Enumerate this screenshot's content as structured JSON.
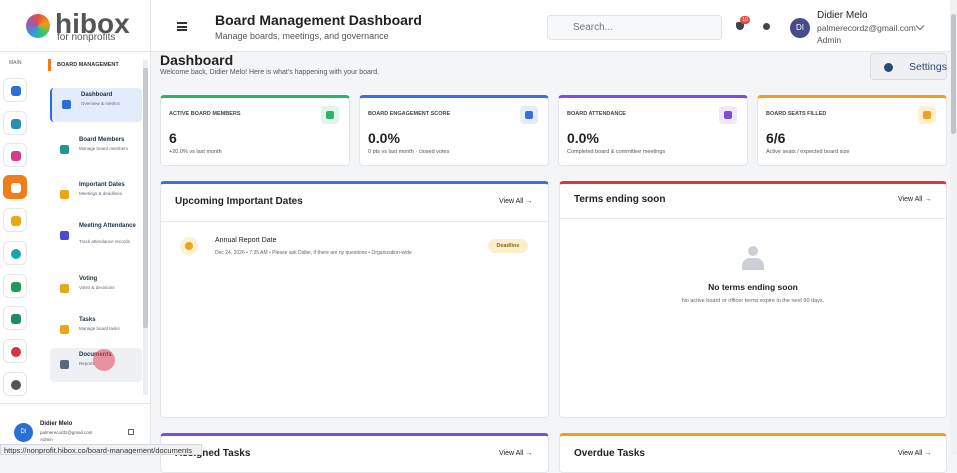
{
  "logo": {
    "name": "hibox",
    "tagline": "for nonprofits"
  },
  "header": {
    "title": "Board Management Dashboard",
    "subtitle": "Manage boards, meetings, and governance",
    "search": "Search...",
    "badge": "10",
    "user": {
      "name": "Didier Melo",
      "email": "palmerecordz@gmail.com",
      "role": "Admin",
      "initials": "DI"
    }
  },
  "sidebar": {
    "rail_label": "MAIN",
    "section": "BOARD MANAGEMENT",
    "items": [
      {
        "title": "Dashboard",
        "desc": "Overview & metrics"
      },
      {
        "title": "Board Members",
        "desc": "Manage board members"
      },
      {
        "title": "Important Dates",
        "desc": "Meetings & deadlines"
      },
      {
        "title": "Meeting Attendance",
        "desc": "Track attendance records"
      },
      {
        "title": "Voting",
        "desc": "Votes & decisions"
      },
      {
        "title": "Tasks",
        "desc": "Manage board tasks"
      },
      {
        "title": "Documents",
        "desc": "Reports"
      }
    ],
    "user": {
      "name": "Didier Melo",
      "email": "palmerecordz@gmail.com",
      "role": "Admin",
      "initials": "DI"
    }
  },
  "page": {
    "title": "Dashboard",
    "welcome": "Welcome back, Didier Melo! Here is what's happening with your board.",
    "settings": "Settings"
  },
  "stats": [
    {
      "label": "ACTIVE BOARD MEMBERS",
      "value": "6",
      "note": "+20.0% vs last month"
    },
    {
      "label": "BOARD ENGAGEMENT SCORE",
      "value": "0.0%",
      "note": "0 pts vs last month · closed votes"
    },
    {
      "label": "BOARD ATTENDANCE",
      "value": "0.0%",
      "note": "Completed board & committee meetings"
    },
    {
      "label": "BOARD SEATS FILLED",
      "value": "6/6",
      "note": "Active seats / expected board size"
    }
  ],
  "upcoming": {
    "title": "Upcoming Important Dates",
    "view_all": "View All →",
    "item": {
      "title": "Annual Report Date",
      "meta": "Dec 24, 2026 • 7:35 AM • Please ask Didier, if there are ny questions • Organization-wide",
      "tag": "Deadline"
    }
  },
  "terms": {
    "title": "Terms ending soon",
    "view_all": "View All →",
    "empty_title": "No terms ending soon",
    "empty_text": "No active board or officer terms expire in the next 90 days."
  },
  "assigned": {
    "title": "Assigned Tasks",
    "view_all": "View All →"
  },
  "overdue": {
    "title": "Overdue Tasks",
    "view_all": "View All →"
  },
  "status_url": "https://nonprofit.hibox.co/board-management/documents"
}
